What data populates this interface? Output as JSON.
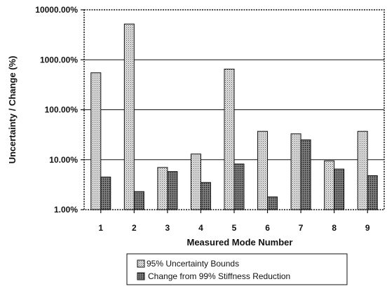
{
  "chart_data": {
    "type": "bar",
    "title": "",
    "xlabel": "Measured Mode Number",
    "ylabel": "Uncertainty / Change (%)",
    "y_scale": "log",
    "ylim": [
      1,
      10000
    ],
    "yticks": [
      1,
      10,
      100,
      1000,
      10000
    ],
    "ytick_labels": [
      "1.00%",
      "10.00%",
      "100.00%",
      "1000.00%",
      "10000.00%"
    ],
    "grid": "horizontal major gridlines",
    "legend_position": "bottom",
    "categories": [
      "1",
      "2",
      "3",
      "4",
      "5",
      "6",
      "7",
      "8",
      "9"
    ],
    "series": [
      {
        "name": "95% Uncertainty Bounds",
        "pattern": "light-dotted",
        "values": [
          550,
          5200,
          7,
          13,
          650,
          37,
          33,
          9.5,
          37
        ]
      },
      {
        "name": "Change from 99% Stiffness Reduction",
        "pattern": "dark-dotted",
        "values": [
          4.5,
          2.3,
          5.8,
          3.5,
          8.2,
          1.8,
          25,
          6.5,
          4.8
        ]
      }
    ]
  }
}
